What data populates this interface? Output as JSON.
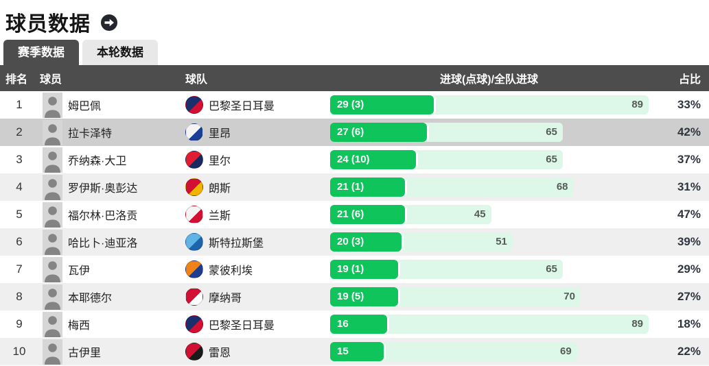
{
  "page": {
    "title": "球员数据"
  },
  "tabs": [
    {
      "label": "赛季数据",
      "active": true
    },
    {
      "label": "本轮数据",
      "active": false
    }
  ],
  "table": {
    "columns": {
      "rank": "排名",
      "player": "球员",
      "team": "球队",
      "goals": "进球(点球)/全队进球",
      "share": "占比"
    },
    "max_team_goals": 89,
    "rows": [
      {
        "rank": "1",
        "player": "姆巴佩",
        "team": "巴黎圣日耳曼",
        "team_icon": "psg-logo-icon",
        "logo_colors": [
          "#1b2f6e",
          "#d21034"
        ],
        "goals_label": "29 (3)",
        "goals": 29,
        "team_goals": 89,
        "share": "33%",
        "highlighted": false
      },
      {
        "rank": "2",
        "player": "拉卡泽特",
        "team": "里昂",
        "team_icon": "lyon-logo-icon",
        "logo_colors": [
          "#f4f4f4",
          "#1b3f94"
        ],
        "goals_label": "27 (6)",
        "goals": 27,
        "team_goals": 65,
        "share": "42%",
        "highlighted": true
      },
      {
        "rank": "3",
        "player": "乔纳森·大卫",
        "team": "里尔",
        "team_icon": "lille-logo-icon",
        "logo_colors": [
          "#e01e2f",
          "#1b2a5e"
        ],
        "goals_label": "24 (10)",
        "goals": 24,
        "team_goals": 65,
        "share": "37%",
        "highlighted": false
      },
      {
        "rank": "4",
        "player": "罗伊斯·奥彭达",
        "team": "朗斯",
        "team_icon": "lens-logo-icon",
        "logo_colors": [
          "#d21034",
          "#f0b400"
        ],
        "goals_label": "21 (1)",
        "goals": 21,
        "team_goals": 68,
        "share": "31%",
        "highlighted": false
      },
      {
        "rank": "5",
        "player": "福尔林·巴洛贡",
        "team": "兰斯",
        "team_icon": "reims-logo-icon",
        "logo_colors": [
          "#f4f4f4",
          "#d21034"
        ],
        "goals_label": "21 (6)",
        "goals": 21,
        "team_goals": 45,
        "share": "47%",
        "highlighted": false
      },
      {
        "rank": "6",
        "player": "哈比卜·迪亚洛",
        "team": "斯特拉斯堡",
        "team_icon": "strasbourg-logo-icon",
        "logo_colors": [
          "#5fb4e5",
          "#1d64a8"
        ],
        "goals_label": "20 (3)",
        "goals": 20,
        "team_goals": 51,
        "share": "39%",
        "highlighted": false
      },
      {
        "rank": "7",
        "player": "瓦伊",
        "team": "蒙彼利埃",
        "team_icon": "montpellier-logo-icon",
        "logo_colors": [
          "#f08217",
          "#1d3e8f"
        ],
        "goals_label": "19 (1)",
        "goals": 19,
        "team_goals": 65,
        "share": "29%",
        "highlighted": false
      },
      {
        "rank": "8",
        "player": "本耶德尔",
        "team": "摩纳哥",
        "team_icon": "monaco-logo-icon",
        "logo_colors": [
          "#d21034",
          "#ffffff"
        ],
        "goals_label": "19 (5)",
        "goals": 19,
        "team_goals": 70,
        "share": "27%",
        "highlighted": false
      },
      {
        "rank": "9",
        "player": "梅西",
        "team": "巴黎圣日耳曼",
        "team_icon": "psg-logo-icon",
        "logo_colors": [
          "#1b2f6e",
          "#d21034"
        ],
        "goals_label": "16",
        "goals": 16,
        "team_goals": 89,
        "share": "18%",
        "highlighted": false
      },
      {
        "rank": "10",
        "player": "古伊里",
        "team": "雷恩",
        "team_icon": "rennes-logo-icon",
        "logo_colors": [
          "#d21034",
          "#1a1a1a"
        ],
        "goals_label": "15",
        "goals": 15,
        "team_goals": 69,
        "share": "22%",
        "highlighted": false
      }
    ]
  },
  "colors": {
    "accent_green": "#10c45c",
    "bar_track_mint": "#ddf8e8",
    "header_bg": "#4d4d4d",
    "active_tab_bg": "#4d4d4d",
    "inactive_tab_bg": "#e8e8e8",
    "row_alt_bg": "#efefef",
    "row_highlight_bg": "#cecece",
    "share_text": "#2e3540"
  }
}
